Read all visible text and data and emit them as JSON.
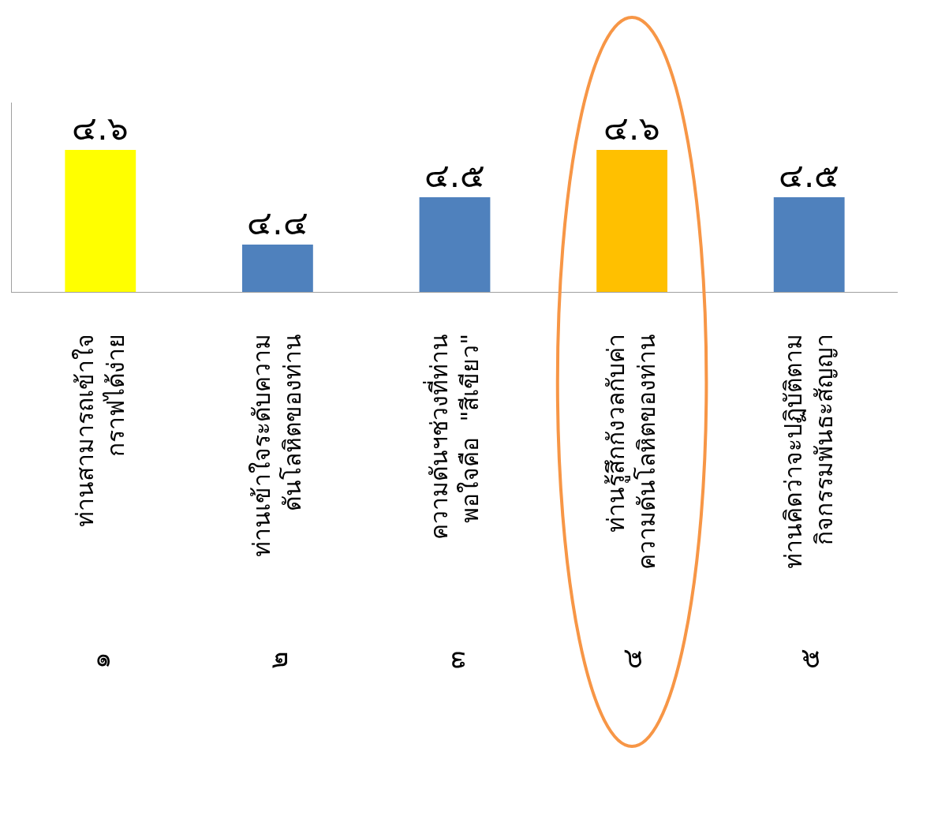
{
  "chart_data": {
    "type": "bar",
    "categories": [
      "ท่านสามารถเข้าใจ\nกราฟได้ง่าย",
      "ท่านเข้าใจระดับความ\nดันโลหิตของท่าน",
      "ความดันฯช่วงที่ท่าน\nพอใจคือ  \"สีเขียว\"",
      "ท่านรู้สึกกังวลกับค่า\nความดันโลหิตของท่าน",
      "ท่านคิดว่าจะปฏิบัติตาม\nกิจกรรมพันธะสัญญา"
    ],
    "values": [
      4.6,
      4.4,
      4.5,
      4.6,
      4.5
    ],
    "value_labels": [
      "๔.๖",
      "๔.๔",
      "๔.๕",
      "๔.๖",
      "๔.๕"
    ],
    "colors": [
      "#ffff00",
      "#4f81bd",
      "#4f81bd",
      "#ffc000",
      "#4f81bd"
    ],
    "ylim": [
      4.3,
      4.7
    ],
    "annotations": [
      "๑",
      "๒",
      "๓",
      "๔",
      "๕"
    ],
    "legend": false
  }
}
